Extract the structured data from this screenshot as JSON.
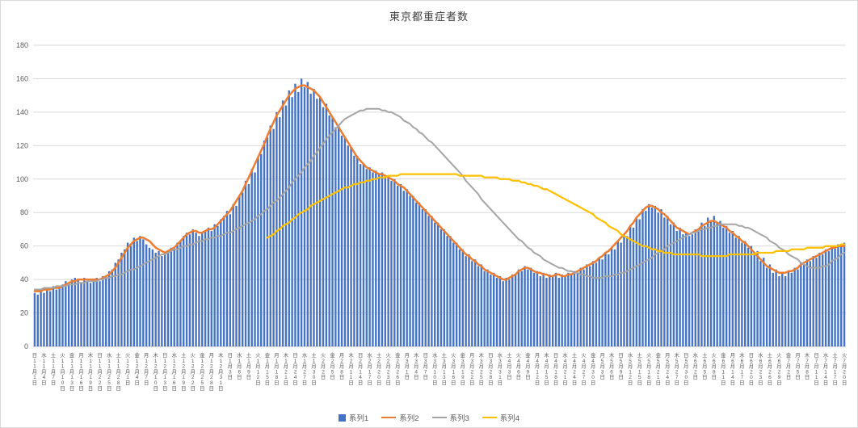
{
  "chart_data": {
    "type": "combo",
    "title": "東京都重症者数",
    "ylim": [
      0,
      180
    ],
    "y_tick_interval": 20,
    "y_tick_labels": [
      "0",
      "20",
      "40",
      "60",
      "80",
      "100",
      "120",
      "140",
      "160",
      "180"
    ],
    "grid": true,
    "legend_position": "bottom",
    "axis_text_color": "#595959",
    "gridline_color": "#D9D9D9",
    "axis_line_color": "#BFBFBF",
    "x_label_interval_days": 3,
    "n_points": 262,
    "x_tick_labels": [
      "日11月1日",
      "水11月4日",
      "土11月7日",
      "火11月10日",
      "金11月13日",
      "月11月16日",
      "木11月19日",
      "日11月22日",
      "水11月25日",
      "土11月28日",
      "火12月1日",
      "金12月4日",
      "月12月7日",
      "木12月10日",
      "日12月13日",
      "水12月16日",
      "土12月19日",
      "火12月22日",
      "金12月25日",
      "月12月28日",
      "木12月31日",
      "日1月3日",
      "水1月6日",
      "土1月9日",
      "火1月12日",
      "金1月15日",
      "月1月18日",
      "木1月21日",
      "日1月24日",
      "水1月27日",
      "土1月30日",
      "火2月2日",
      "金2月5日",
      "月2月8日",
      "木2月11日",
      "日2月14日",
      "水2月17日",
      "土2月20日",
      "火2月23日",
      "金2月26日",
      "月3月1日",
      "木3月4日",
      "日3月7日",
      "水3月10日",
      "土3月13日",
      "火3月16日",
      "金3月19日",
      "月3月22日",
      "木3月25日",
      "日3月28日",
      "水3月31日",
      "土4月3日",
      "火4月6日",
      "金4月9日",
      "月4月12日",
      "木4月15日",
      "日4月18日",
      "水4月21日",
      "土4月24日",
      "火4月27日",
      "金4月30日",
      "月5月3日",
      "木5月6日",
      "日5月9日",
      "水5月12日",
      "土5月15日",
      "火5月18日",
      "金5月21日",
      "月5月24日",
      "木5月27日",
      "日5月30日",
      "水6月2日",
      "土6月5日",
      "火6月8日",
      "金6月11日",
      "月6月14日",
      "木6月17日",
      "日6月20日",
      "水6月23日",
      "土6月26日",
      "火6月29日",
      "金7月2日",
      "月7月5日",
      "木7月8日",
      "日7月11日",
      "水7月14日",
      "土7月17日",
      "火7月20日"
    ],
    "series": [
      {
        "name": "系列1",
        "type": "bar",
        "color": "#4472C4",
        "values": [
          32,
          31,
          33,
          32,
          34,
          33,
          36,
          34,
          36,
          37,
          39,
          38,
          40,
          41,
          40,
          38,
          41,
          39,
          38,
          40,
          41,
          39,
          42,
          42,
          45,
          46,
          50,
          52,
          56,
          58,
          62,
          60,
          65,
          63,
          66,
          64,
          61,
          59,
          58,
          56,
          57,
          54,
          56,
          56,
          59,
          59,
          62,
          63,
          66,
          68,
          67,
          70,
          68,
          66,
          68,
          69,
          71,
          69,
          73,
          72,
          76,
          78,
          81,
          79,
          85,
          84,
          90,
          92,
          99,
          97,
          106,
          104,
          113,
          115,
          123,
          125,
          132,
          130,
          140,
          137,
          147,
          144,
          153,
          149,
          157,
          152,
          160,
          155,
          158,
          151,
          154,
          148,
          149,
          143,
          145,
          138,
          137,
          131,
          132,
          126,
          125,
          120,
          119,
          114,
          114,
          109,
          109,
          106,
          107,
          104,
          105,
          103,
          104,
          101,
          102,
          99,
          100,
          96,
          97,
          93,
          94,
          90,
          90,
          86,
          86,
          82,
          82,
          78,
          78,
          74,
          74,
          70,
          70,
          66,
          66,
          62,
          62,
          58,
          58,
          54,
          55,
          51,
          52,
          48,
          49,
          45,
          46,
          43,
          44,
          41,
          42,
          39,
          41,
          40,
          43,
          43,
          46,
          45,
          48,
          46,
          47,
          44,
          45,
          42,
          44,
          41,
          43,
          42,
          44,
          41,
          43,
          42,
          44,
          43,
          45,
          44,
          47,
          46,
          49,
          48,
          51,
          50,
          53,
          52,
          56,
          55,
          59,
          58,
          63,
          62,
          67,
          66,
          72,
          71,
          77,
          76,
          82,
          81,
          85,
          83,
          84,
          80,
          82,
          77,
          78,
          73,
          74,
          69,
          71,
          67,
          68,
          66,
          67,
          70,
          69,
          74,
          72,
          77,
          75,
          78,
          74,
          75,
          71,
          72,
          68,
          69,
          65,
          66,
          62,
          63,
          59,
          60,
          55,
          57,
          51,
          53,
          47,
          49,
          44,
          46,
          42,
          44,
          42,
          45,
          44,
          47,
          46,
          50,
          49,
          52,
          51,
          54,
          53,
          56,
          55,
          58,
          57,
          60,
          59,
          61,
          60,
          62
        ]
      },
      {
        "name": "系列2",
        "type": "line",
        "color": "#ED7D31",
        "values": [
          33,
          33,
          33,
          34,
          34,
          34,
          35,
          35,
          35,
          36,
          37,
          38,
          39,
          39,
          40,
          40,
          40,
          40,
          40,
          40,
          40,
          40,
          41,
          42,
          43,
          45,
          47,
          50,
          53,
          56,
          59,
          61,
          63,
          64,
          65,
          65,
          64,
          63,
          61,
          59,
          58,
          57,
          56,
          57,
          58,
          59,
          61,
          63,
          65,
          67,
          68,
          69,
          69,
          68,
          68,
          69,
          70,
          70,
          71,
          73,
          75,
          77,
          79,
          81,
          84,
          87,
          90,
          93,
          97,
          101,
          105,
          109,
          113,
          117,
          121,
          126,
          130,
          134,
          138,
          141,
          144,
          147,
          150,
          152,
          154,
          155,
          156,
          156,
          155,
          154,
          153,
          151,
          149,
          146,
          143,
          140,
          137,
          134,
          131,
          128,
          125,
          122,
          119,
          116,
          113,
          111,
          109,
          107,
          106,
          105,
          104,
          103,
          103,
          102,
          101,
          100,
          99,
          97,
          96,
          95,
          93,
          91,
          89,
          87,
          85,
          83,
          81,
          79,
          77,
          75,
          73,
          71,
          69,
          67,
          65,
          63,
          61,
          59,
          57,
          55,
          54,
          52,
          51,
          49,
          48,
          46,
          45,
          44,
          43,
          42,
          41,
          40,
          40,
          41,
          42,
          43,
          45,
          46,
          47,
          47,
          46,
          45,
          44,
          44,
          43,
          43,
          42,
          42,
          43,
          43,
          42,
          42,
          43,
          43,
          44,
          45,
          46,
          47,
          48,
          49,
          50,
          51,
          53,
          54,
          56,
          57,
          59,
          61,
          63,
          65,
          67,
          69,
          72,
          74,
          77,
          79,
          81,
          83,
          84,
          84,
          83,
          82,
          80,
          79,
          77,
          75,
          73,
          71,
          70,
          69,
          68,
          67,
          68,
          69,
          70,
          72,
          73,
          74,
          75,
          75,
          74,
          73,
          72,
          71,
          69,
          68,
          66,
          65,
          63,
          62,
          60,
          58,
          56,
          54,
          52,
          50,
          48,
          47,
          46,
          45,
          44,
          44,
          44,
          45,
          45,
          46,
          47,
          49,
          50,
          51,
          52,
          53,
          54,
          55,
          56,
          57,
          58,
          59,
          59,
          60,
          60,
          60
        ]
      },
      {
        "name": "系列3",
        "type": "line",
        "color": "#A5A5A5",
        "values": [
          34,
          34,
          34,
          35,
          35,
          35,
          35,
          36,
          36,
          36,
          36,
          37,
          37,
          37,
          38,
          38,
          38,
          39,
          39,
          39,
          39,
          40,
          40,
          41,
          41,
          42,
          42,
          43,
          43,
          44,
          45,
          46,
          46,
          47,
          48,
          49,
          50,
          51,
          52,
          53,
          54,
          55,
          55,
          56,
          57,
          58,
          58,
          59,
          60,
          60,
          61,
          61,
          62,
          63,
          63,
          64,
          64,
          65,
          65,
          66,
          66,
          67,
          68,
          68,
          69,
          70,
          71,
          72,
          73,
          74,
          75,
          76,
          78,
          79,
          81,
          82,
          84,
          86,
          87,
          89,
          91,
          93,
          95,
          98,
          100,
          102,
          104,
          107,
          109,
          111,
          114,
          116,
          119,
          121,
          124,
          126,
          128,
          130,
          132,
          134,
          136,
          137,
          138,
          139,
          140,
          141,
          141,
          142,
          142,
          142,
          142,
          142,
          141,
          141,
          140,
          140,
          139,
          138,
          137,
          135,
          134,
          133,
          131,
          130,
          128,
          127,
          125,
          123,
          122,
          120,
          118,
          116,
          114,
          112,
          110,
          108,
          106,
          104,
          102,
          99,
          97,
          95,
          93,
          91,
          88,
          86,
          84,
          82,
          80,
          78,
          76,
          74,
          72,
          70,
          68,
          66,
          64,
          63,
          61,
          59,
          58,
          56,
          55,
          54,
          52,
          51,
          50,
          49,
          48,
          47,
          47,
          46,
          45,
          45,
          44,
          44,
          43,
          43,
          42,
          42,
          41,
          41,
          41,
          41,
          42,
          42,
          42,
          43,
          43,
          44,
          44,
          45,
          46,
          47,
          48,
          49,
          50,
          51,
          52,
          53,
          55,
          56,
          57,
          58,
          60,
          61,
          62,
          63,
          64,
          65,
          66,
          67,
          68,
          68,
          69,
          70,
          70,
          71,
          71,
          72,
          72,
          73,
          73,
          73,
          73,
          73,
          73,
          72,
          72,
          71,
          71,
          70,
          69,
          68,
          67,
          66,
          65,
          63,
          62,
          61,
          59,
          58,
          57,
          55,
          54,
          53,
          52,
          50,
          49,
          48,
          47,
          47,
          47,
          47,
          48,
          48,
          49,
          51,
          52,
          53,
          55,
          56
        ]
      },
      {
        "name": "系列4",
        "type": "line",
        "color": "#FFC000",
        "values": [
          null,
          null,
          null,
          null,
          null,
          null,
          null,
          null,
          null,
          null,
          null,
          null,
          null,
          null,
          null,
          null,
          null,
          null,
          null,
          null,
          null,
          null,
          null,
          null,
          null,
          null,
          null,
          null,
          null,
          null,
          null,
          null,
          null,
          null,
          null,
          null,
          null,
          null,
          null,
          null,
          null,
          null,
          null,
          null,
          null,
          null,
          null,
          null,
          null,
          null,
          null,
          null,
          null,
          null,
          null,
          null,
          null,
          null,
          null,
          null,
          null,
          null,
          null,
          null,
          null,
          null,
          null,
          null,
          null,
          null,
          null,
          null,
          null,
          null,
          null,
          65,
          66,
          67,
          69,
          70,
          72,
          73,
          74,
          76,
          77,
          79,
          80,
          81,
          82,
          84,
          85,
          86,
          87,
          88,
          89,
          90,
          91,
          92,
          93,
          94,
          95,
          95,
          96,
          97,
          97,
          98,
          98,
          99,
          99,
          100,
          100,
          101,
          101,
          101,
          102,
          102,
          102,
          102,
          103,
          103,
          103,
          103,
          103,
          103,
          103,
          103,
          103,
          103,
          103,
          103,
          103,
          103,
          103,
          103,
          103,
          103,
          103,
          102,
          102,
          102,
          102,
          102,
          102,
          102,
          102,
          101,
          101,
          101,
          101,
          101,
          100,
          100,
          100,
          100,
          99,
          99,
          99,
          98,
          98,
          97,
          97,
          96,
          96,
          95,
          94,
          94,
          93,
          92,
          91,
          90,
          89,
          88,
          87,
          86,
          85,
          84,
          83,
          82,
          81,
          80,
          79,
          77,
          76,
          75,
          74,
          72,
          71,
          70,
          69,
          67,
          66,
          65,
          64,
          63,
          62,
          61,
          60,
          60,
          59,
          58,
          58,
          57,
          57,
          56,
          56,
          56,
          55,
          55,
          55,
          55,
          55,
          55,
          55,
          55,
          55,
          54,
          54,
          54,
          54,
          54,
          54,
          54,
          54,
          54,
          55,
          55,
          55,
          55,
          55,
          55,
          55,
          55,
          55,
          56,
          56,
          56,
          56,
          56,
          56,
          57,
          57,
          57,
          57,
          57,
          58,
          58,
          58,
          58,
          58,
          59,
          59,
          59,
          59,
          59,
          59,
          60,
          60,
          60,
          60,
          60,
          61,
          61
        ]
      }
    ]
  }
}
